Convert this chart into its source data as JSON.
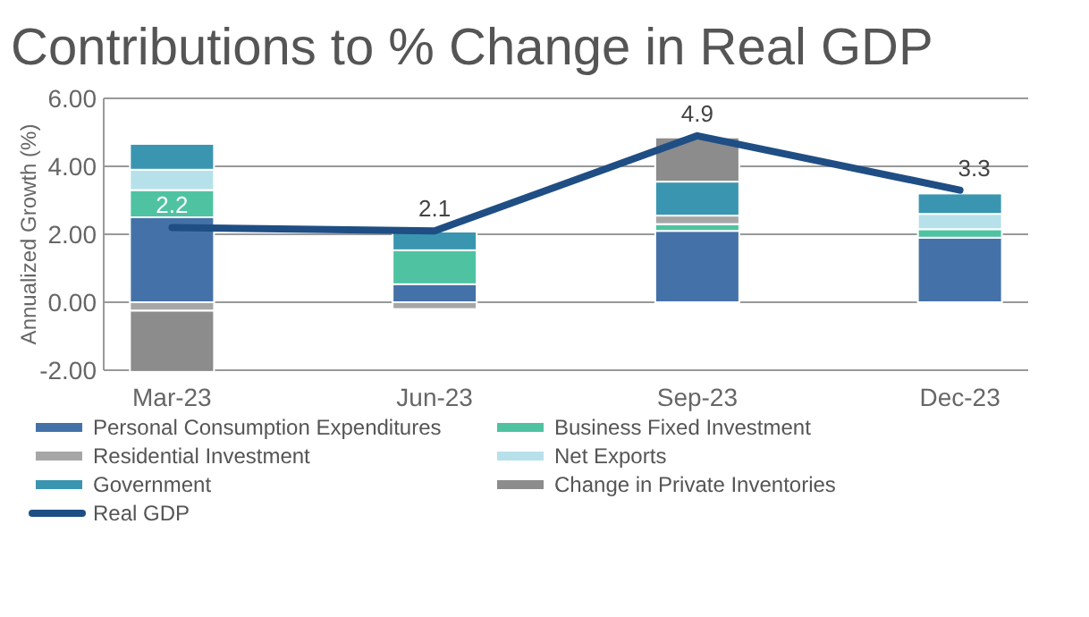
{
  "chart_data": {
    "type": "bar",
    "title": "Contributions to % Change in Real GDP",
    "ylabel": "Annualized Growth (%)",
    "categories": [
      "Mar-23",
      "Jun-23",
      "Sep-23",
      "Dec-23"
    ],
    "stacked": true,
    "ylim": [
      -2,
      6
    ],
    "yticks": [
      {
        "value": -2,
        "label": "-2.00"
      },
      {
        "value": 0,
        "label": "0.00"
      },
      {
        "value": 2,
        "label": "2.00"
      },
      {
        "value": 4,
        "label": "4.00"
      },
      {
        "value": 6,
        "label": "6.00"
      }
    ],
    "grid": "y",
    "legend": "bottom",
    "series": [
      {
        "name": "Personal Consumption Expenditures",
        "color": "#4472a8",
        "values": [
          2.5,
          0.53,
          2.1,
          1.9
        ]
      },
      {
        "name": "Business Fixed Investment",
        "color": "#4fc3a1",
        "values": [
          0.8,
          1.0,
          0.2,
          0.25
        ]
      },
      {
        "name": "Residential Investment",
        "color": "#a6a6a6",
        "values": [
          -0.25,
          -0.2,
          0.25,
          null
        ]
      },
      {
        "name": "Net Exports",
        "color": "#b7e1ea",
        "values": [
          0.6,
          null,
          null,
          0.45
        ]
      },
      {
        "name": "Government",
        "color": "#3a96b0",
        "values": [
          0.76,
          0.55,
          1.0,
          0.6
        ]
      },
      {
        "name": "Change in Private Inventories",
        "color": "#8c8c8c",
        "values": [
          -1.8,
          null,
          1.3,
          null
        ]
      },
      {
        "name": "Real GDP",
        "type": "line",
        "color": "#1f4e84",
        "values": [
          2.2,
          2.1,
          4.9,
          3.3
        ],
        "value_labels": [
          "2.2",
          "2.1",
          "4.9",
          "3.3"
        ]
      }
    ]
  }
}
